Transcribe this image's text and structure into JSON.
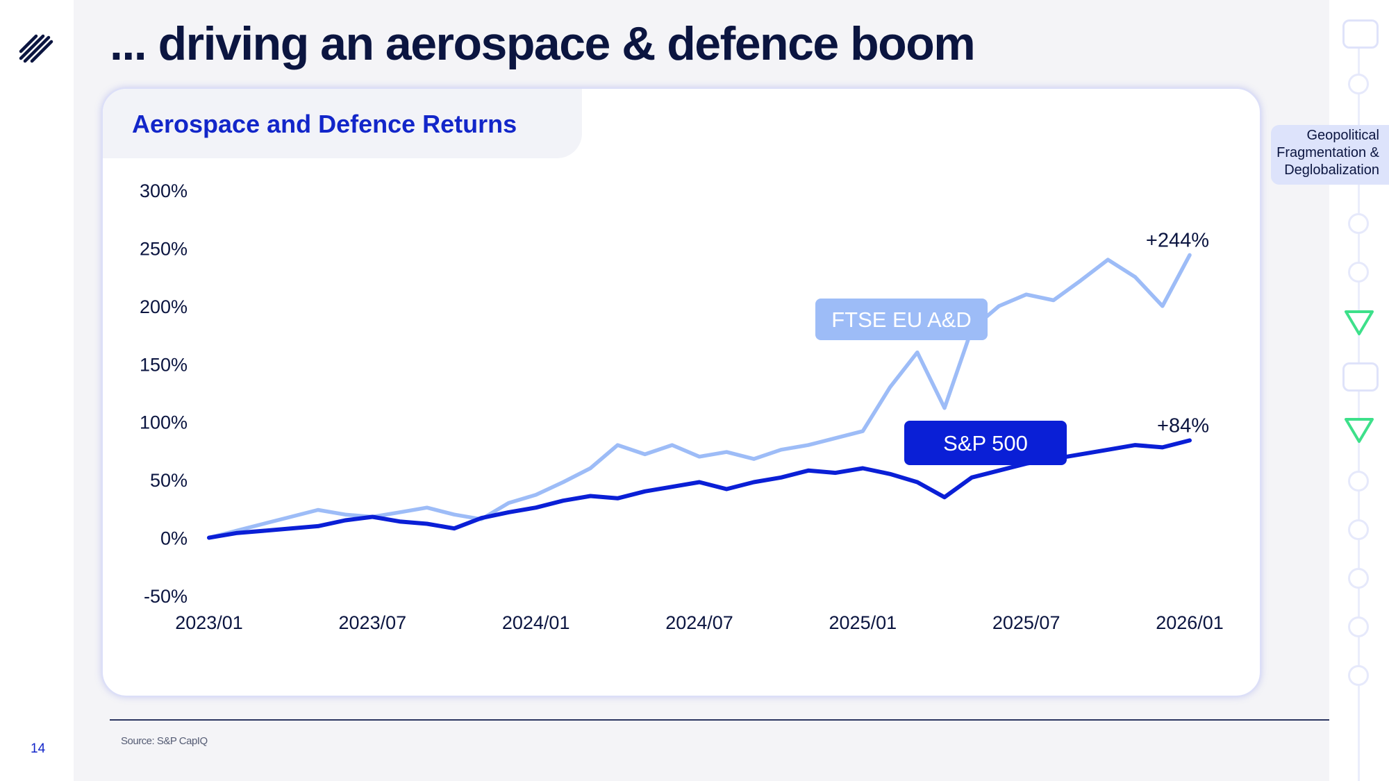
{
  "page": {
    "title": "... driving an aerospace & defence boom",
    "page_number": "14",
    "source": "Source: S&P CapIQ",
    "section_tag": "Geopolitical Fragmentation & Deglobalization",
    "logo_icon": "stripes-logo-icon",
    "colors": {
      "navy": "#0b1540",
      "blue": "#0a1fd6",
      "light_blue": "#9dbcf7",
      "green": "#3de08a"
    }
  },
  "card": {
    "title": "Aerospace and Defence Returns"
  },
  "chart_data": {
    "type": "line",
    "title": "Aerospace and Defence Returns",
    "xlabel": "",
    "ylabel": "",
    "x_ticks": [
      "2023/01",
      "2023/07",
      "2024/01",
      "2024/07",
      "2025/01",
      "2025/07",
      "2026/01"
    ],
    "y_ticks": [
      "300%",
      "250%",
      "200%",
      "150%",
      "100%",
      "50%",
      "0%",
      "-50%"
    ],
    "ylim": [
      -50,
      300
    ],
    "xlim": [
      "2023-01",
      "2026-01"
    ],
    "grid": false,
    "legend": "inline labels on series",
    "series": [
      {
        "name": "FTSE EU A&D",
        "color": "#9dbcf7",
        "end_label": "+244%",
        "x": [
          "2023-01",
          "2023-02",
          "2023-03",
          "2023-04",
          "2023-05",
          "2023-06",
          "2023-07",
          "2023-08",
          "2023-09",
          "2023-10",
          "2023-11",
          "2023-12",
          "2024-01",
          "2024-02",
          "2024-03",
          "2024-04",
          "2024-05",
          "2024-06",
          "2024-07",
          "2024-08",
          "2024-09",
          "2024-10",
          "2024-11",
          "2024-12",
          "2025-01",
          "2025-02",
          "2025-03",
          "2025-04",
          "2025-05",
          "2025-06",
          "2025-07",
          "2025-08",
          "2025-09",
          "2025-10",
          "2025-11",
          "2025-12",
          "2026-01"
        ],
        "y": [
          0,
          6,
          12,
          18,
          24,
          20,
          18,
          22,
          26,
          20,
          16,
          30,
          37,
          48,
          60,
          80,
          72,
          80,
          70,
          74,
          68,
          76,
          80,
          86,
          92,
          130,
          160,
          112,
          180,
          200,
          210,
          205,
          222,
          240,
          225,
          200,
          244
        ]
      },
      {
        "name": "S&P 500",
        "color": "#0a1fd6",
        "end_label": "+84%",
        "x": [
          "2023-01",
          "2023-02",
          "2023-03",
          "2023-04",
          "2023-05",
          "2023-06",
          "2023-07",
          "2023-08",
          "2023-09",
          "2023-10",
          "2023-11",
          "2023-12",
          "2024-01",
          "2024-02",
          "2024-03",
          "2024-04",
          "2024-05",
          "2024-06",
          "2024-07",
          "2024-08",
          "2024-09",
          "2024-10",
          "2024-11",
          "2024-12",
          "2025-01",
          "2025-02",
          "2025-03",
          "2025-04",
          "2025-05",
          "2025-06",
          "2025-07",
          "2025-08",
          "2025-09",
          "2025-10",
          "2025-11",
          "2025-12",
          "2026-01"
        ],
        "y": [
          0,
          4,
          6,
          8,
          10,
          15,
          18,
          14,
          12,
          8,
          17,
          22,
          26,
          32,
          36,
          34,
          40,
          44,
          48,
          42,
          48,
          52,
          58,
          56,
          60,
          55,
          48,
          35,
          52,
          58,
          64,
          68,
          72,
          76,
          80,
          78,
          84
        ]
      }
    ]
  }
}
